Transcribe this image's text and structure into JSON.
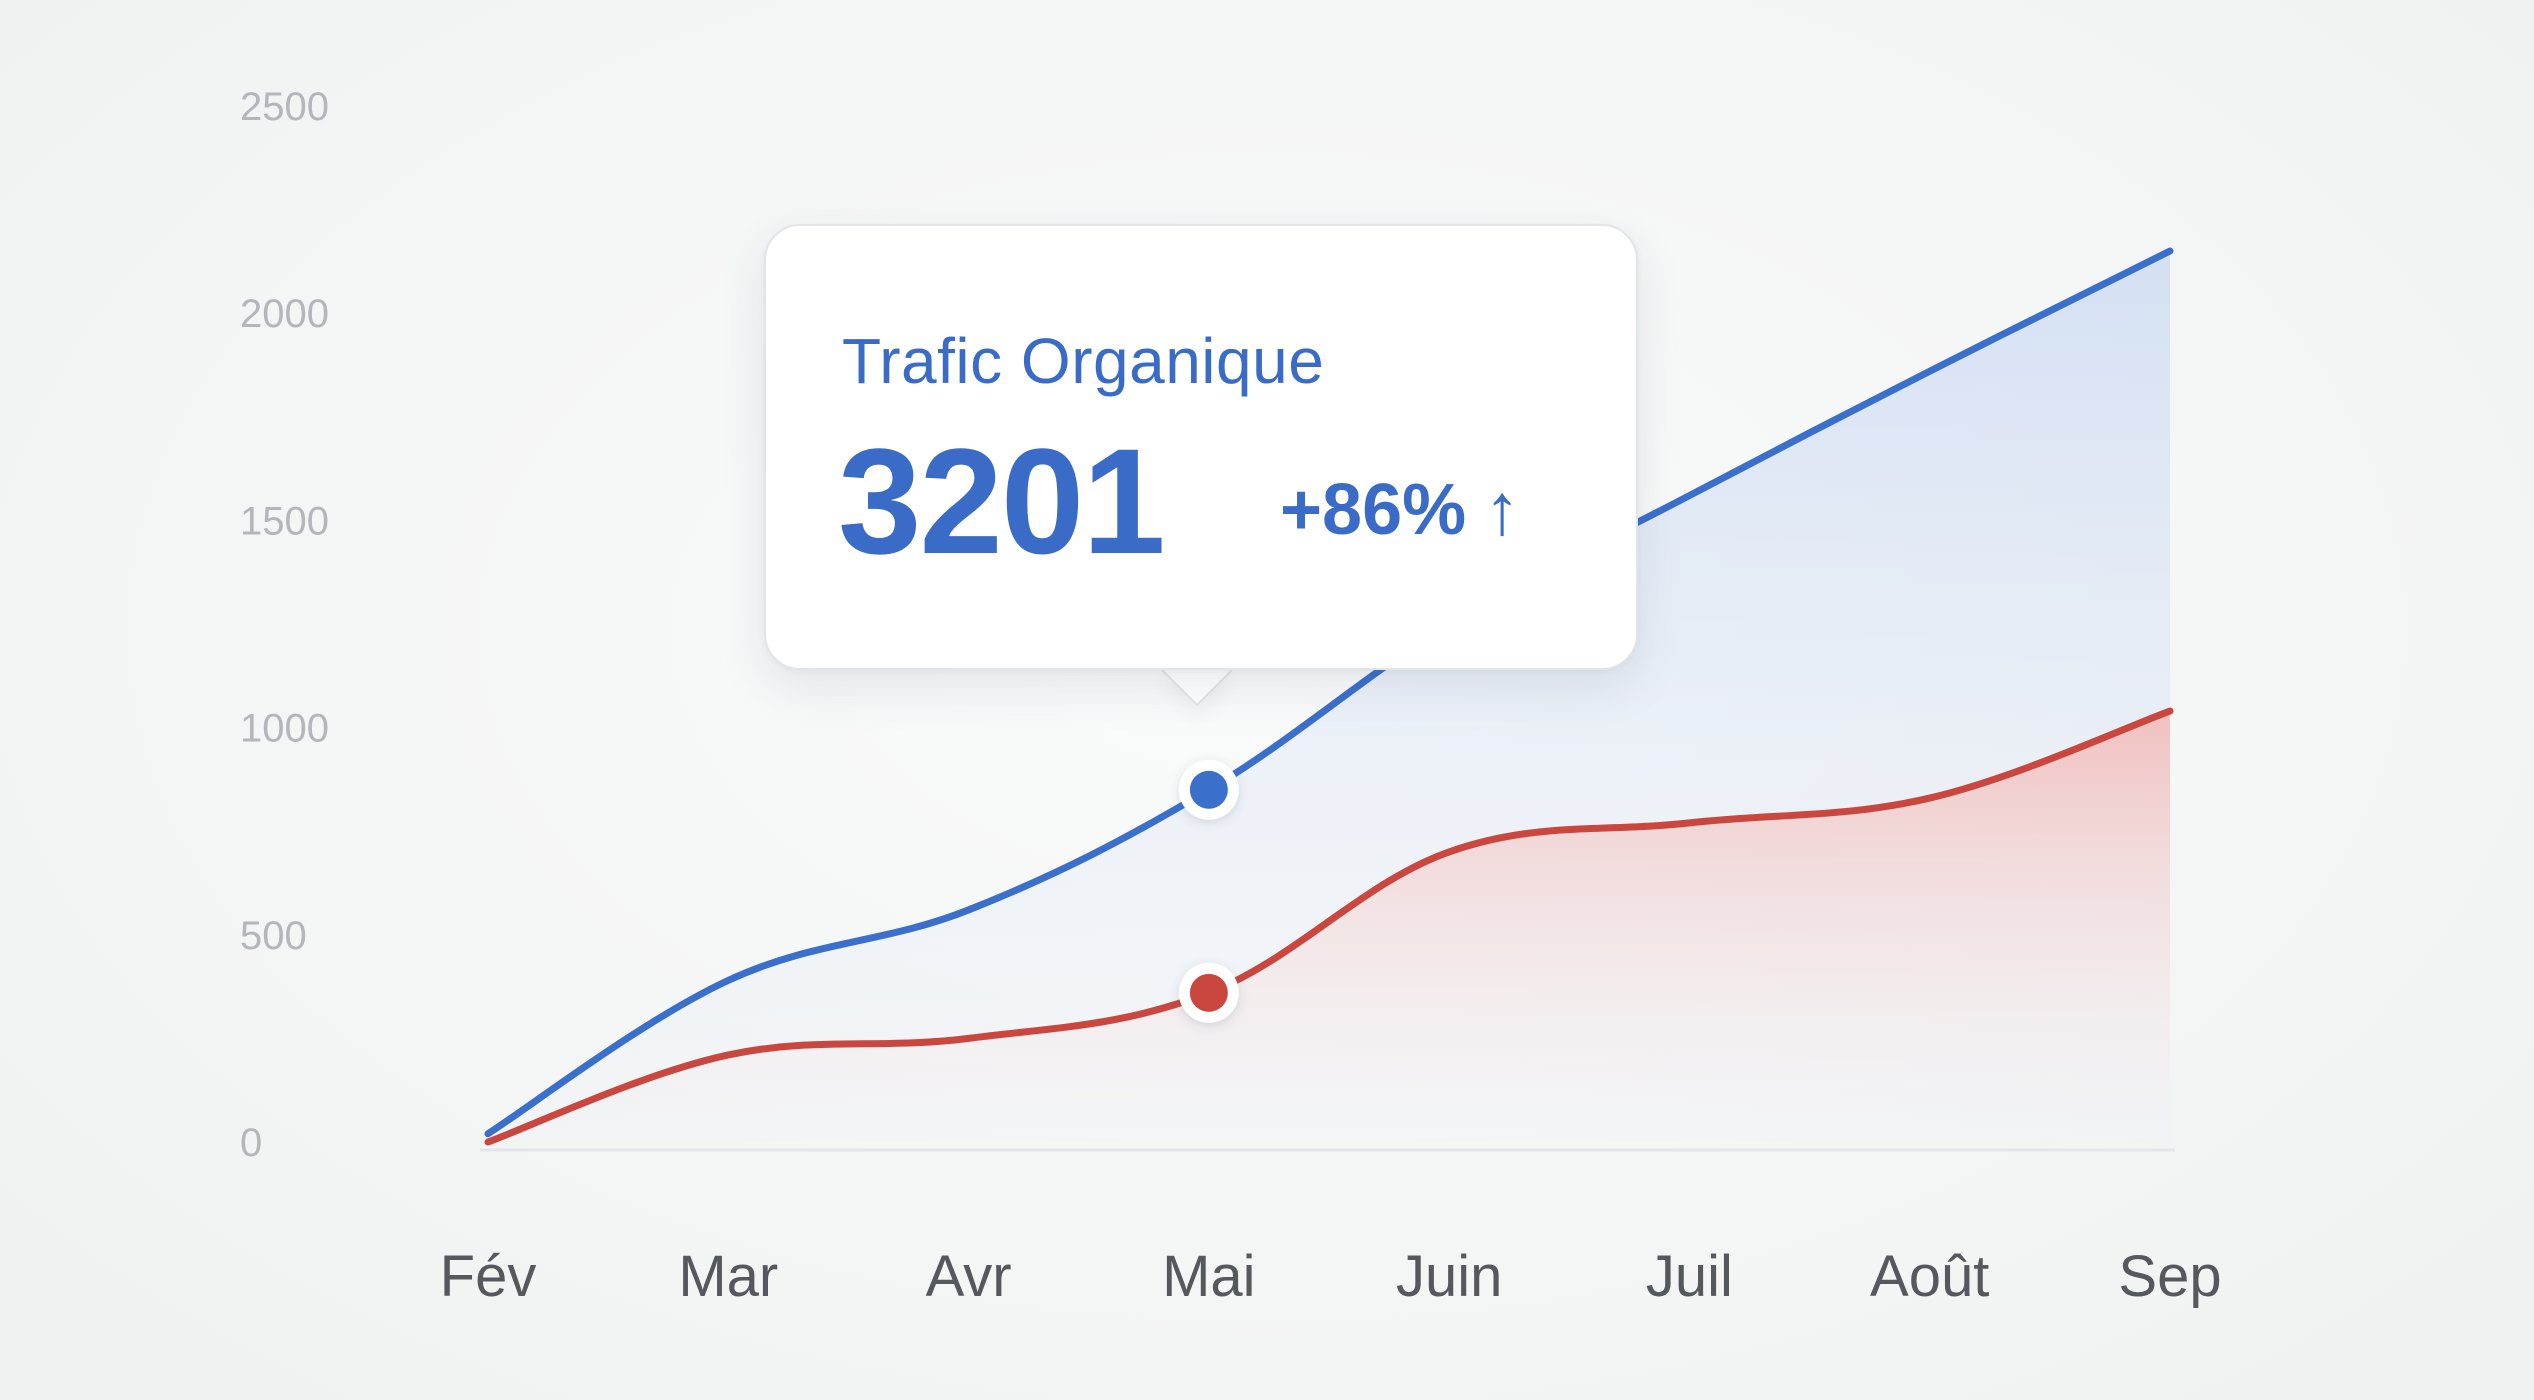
{
  "chart_data": {
    "type": "area",
    "categories": [
      "Fév",
      "Mar",
      "Avr",
      "Mai",
      "Juin",
      "Juil",
      "Août",
      "Sep"
    ],
    "y_ticks": [
      "2500",
      "2000",
      "1500",
      "1000",
      "500",
      "0"
    ],
    "ylim": [
      0,
      2500
    ],
    "grid": false,
    "series": [
      {
        "values": [
          20,
          390,
          560,
          850,
          1250,
          1560,
          1860,
          2150
        ],
        "color": "#3b6fcc"
      },
      {
        "values": [
          0,
          210,
          250,
          360,
          700,
          770,
          830,
          1040
        ],
        "color": "#c9473f"
      }
    ],
    "highlight_index": 3,
    "tooltip": {
      "title": "Trafic Organique",
      "value": "3201",
      "change": "+86%",
      "change_icon": "arrow-up-icon"
    }
  }
}
